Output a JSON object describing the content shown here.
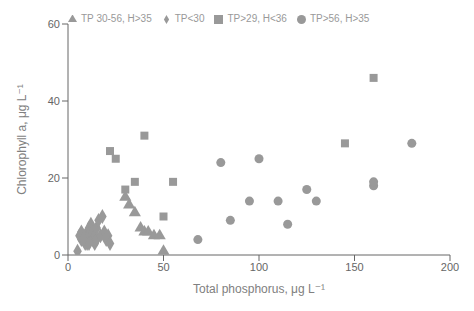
{
  "chart_data": {
    "type": "scatter",
    "xlabel": "Total phosphorus, μg L⁻¹",
    "ylabel": "Chlorophyll a, μg L⁻¹",
    "xlim": [
      0,
      200
    ],
    "ylim": [
      0,
      60
    ],
    "xticks": [
      0,
      50,
      100,
      150,
      200
    ],
    "yticks": [
      0,
      20,
      40,
      60
    ],
    "color": "#999999",
    "grid": false,
    "legend": "upper left",
    "series": [
      {
        "name": "TP<30",
        "marker": "diamond",
        "x": [
          5,
          7,
          8,
          9,
          10,
          10,
          11,
          11,
          12,
          12,
          13,
          13,
          14,
          14,
          15,
          15,
          16,
          17,
          18,
          19,
          20,
          21,
          22,
          9,
          10,
          11,
          6,
          7,
          8
        ],
        "values": [
          1,
          4,
          5,
          5,
          3,
          6,
          4,
          7,
          5,
          8,
          4,
          6,
          3,
          5,
          4,
          7,
          9,
          5,
          10,
          6,
          4,
          5,
          3,
          3,
          4,
          3,
          5,
          6,
          4
        ]
      },
      {
        "name": "TP>29, H<36",
        "marker": "square",
        "x": [
          22,
          25,
          30,
          35,
          40,
          50,
          55,
          145,
          160
        ],
        "values": [
          27,
          25,
          17,
          19,
          31,
          10,
          19,
          29,
          46
        ]
      },
      {
        "name": "TP 30-56, H>35",
        "marker": "triangle",
        "x": [
          30,
          32,
          35,
          38,
          40,
          42,
          45,
          48,
          50
        ],
        "values": [
          15,
          13,
          11,
          7,
          6,
          6,
          5,
          5,
          1
        ]
      },
      {
        "name": "TP>56, H>35",
        "marker": "circle",
        "x": [
          68,
          80,
          85,
          95,
          100,
          110,
          115,
          125,
          130,
          160,
          160,
          180
        ],
        "values": [
          4,
          24,
          9,
          14,
          25,
          14,
          8,
          17,
          14,
          18,
          19,
          29
        ]
      }
    ]
  }
}
